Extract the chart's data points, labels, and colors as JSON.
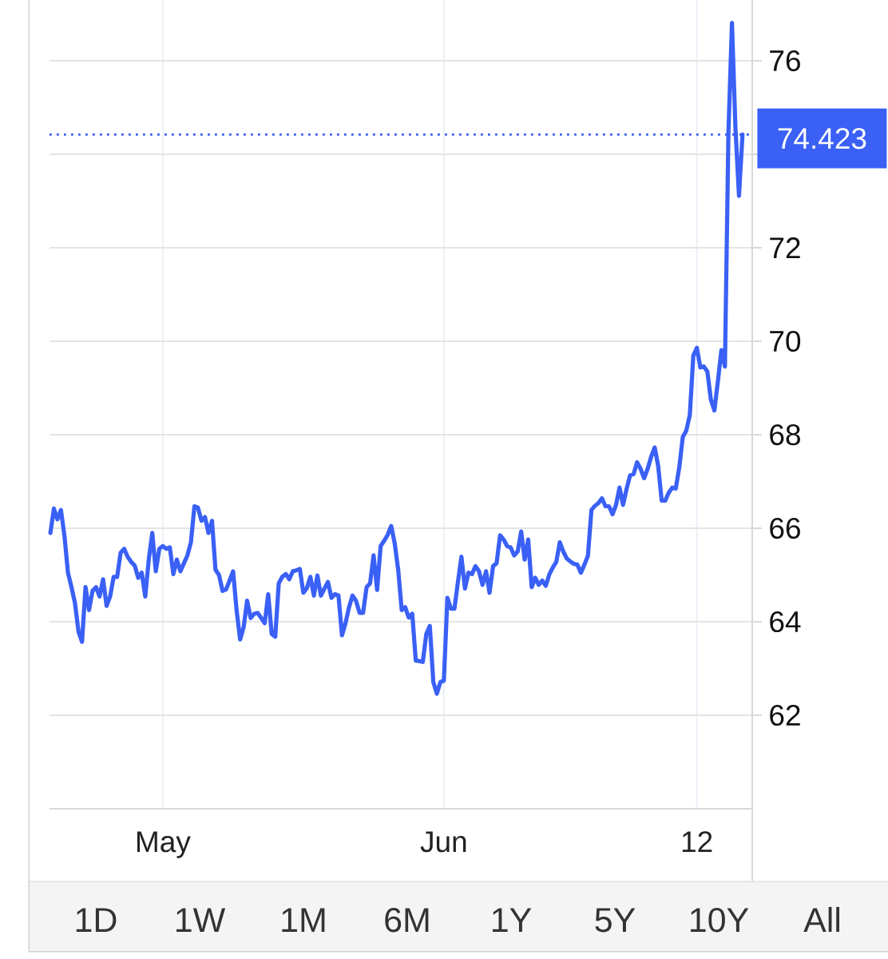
{
  "chart_data": {
    "type": "line",
    "categories": [
      null,
      null,
      null,
      null,
      null,
      null,
      null,
      null,
      null,
      null,
      null,
      null,
      null,
      null,
      null,
      null,
      null,
      null,
      null,
      null,
      null,
      null,
      null,
      null,
      null,
      null,
      null,
      null,
      null,
      null,
      null,
      null,
      "May",
      null,
      null,
      null,
      null,
      null,
      null,
      null,
      null,
      null,
      null,
      null,
      null,
      null,
      null,
      null,
      null,
      null,
      null,
      null,
      null,
      null,
      null,
      null,
      null,
      null,
      null,
      null,
      null,
      null,
      null,
      null,
      null,
      null,
      null,
      null,
      null,
      null,
      null,
      null,
      null,
      null,
      null,
      null,
      null,
      null,
      null,
      null,
      null,
      null,
      null,
      null,
      null,
      null,
      null,
      null,
      null,
      null,
      null,
      null,
      null,
      null,
      null,
      null,
      null,
      null,
      null,
      null,
      null,
      null,
      null,
      null,
      null,
      null,
      null,
      null,
      null,
      null,
      null,
      null,
      "Jun",
      null,
      null,
      null,
      null,
      null,
      null,
      null,
      null,
      null,
      null,
      null,
      null,
      null,
      null,
      null,
      null,
      null,
      null,
      null,
      null,
      null,
      null,
      null,
      null,
      null,
      null,
      null,
      null,
      null,
      null,
      null,
      null,
      null,
      null,
      null,
      null,
      null,
      null,
      null,
      null,
      null,
      null,
      null,
      null,
      null,
      null,
      null,
      null,
      null,
      null,
      null,
      null,
      null,
      null,
      null,
      null,
      null,
      null,
      null,
      null,
      null,
      null,
      null,
      null,
      null,
      null,
      null,
      null,
      null,
      null,
      null,
      "12",
      null,
      null,
      null,
      null,
      null,
      null,
      null,
      null,
      null,
      null,
      null,
      null,
      null
    ],
    "values": [
      65.9,
      66.42,
      66.19,
      66.39,
      65.84,
      65.05,
      64.74,
      64.4,
      63.79,
      63.57,
      64.74,
      64.25,
      64.66,
      64.74,
      64.54,
      64.91,
      64.34,
      64.54,
      64.96,
      64.96,
      65.48,
      65.56,
      65.39,
      65.28,
      65.2,
      64.94,
      65.05,
      64.54,
      65.33,
      65.9,
      65.08,
      65.56,
      65.62,
      65.56,
      65.59,
      65.02,
      65.33,
      65.08,
      65.25,
      65.42,
      65.7,
      66.47,
      66.44,
      66.16,
      66.24,
      65.9,
      66.16,
      65.11,
      65.0,
      64.66,
      64.69,
      64.88,
      65.08,
      64.25,
      63.62,
      63.88,
      64.45,
      64.08,
      64.17,
      64.19,
      64.08,
      63.97,
      64.59,
      63.74,
      63.68,
      64.82,
      64.96,
      65.02,
      64.91,
      65.08,
      65.1,
      65.13,
      64.62,
      64.72,
      64.96,
      64.56,
      64.99,
      64.56,
      64.71,
      64.85,
      64.51,
      64.59,
      64.56,
      63.71,
      63.97,
      64.31,
      64.56,
      64.45,
      64.19,
      64.19,
      64.74,
      64.82,
      65.42,
      64.68,
      65.62,
      65.73,
      65.86,
      66.05,
      65.68,
      65.11,
      64.25,
      64.31,
      64.09,
      64.17,
      63.17,
      63.16,
      63.14,
      63.74,
      63.91,
      62.71,
      62.46,
      62.71,
      62.74,
      64.51,
      64.28,
      64.28,
      64.85,
      65.39,
      64.71,
      65.05,
      65.02,
      65.19,
      65.08,
      64.79,
      65.08,
      64.62,
      65.19,
      65.25,
      65.85,
      65.76,
      65.62,
      65.59,
      65.42,
      65.5,
      65.93,
      65.33,
      65.76,
      64.74,
      64.94,
      64.79,
      64.88,
      64.77,
      65.01,
      65.16,
      65.28,
      65.7,
      65.5,
      65.35,
      65.29,
      65.24,
      65.22,
      65.05,
      65.22,
      65.41,
      66.39,
      66.48,
      66.54,
      66.64,
      66.47,
      66.47,
      66.3,
      66.5,
      66.87,
      66.5,
      66.84,
      67.13,
      67.16,
      67.41,
      67.27,
      67.07,
      67.27,
      67.53,
      67.73,
      67.33,
      66.59,
      66.59,
      66.76,
      66.87,
      66.85,
      67.3,
      67.95,
      68.09,
      68.42,
      69.69,
      69.86,
      69.44,
      69.46,
      69.35,
      68.75,
      68.52,
      69.15,
      69.81,
      69.46,
      74.48,
      76.81,
      74.54,
      73.11,
      74.42
    ],
    "color": "#3a60f5",
    "ylim": [
      60,
      77.3
    ],
    "yticks": [
      62,
      64,
      66,
      68,
      70,
      72,
      {
        "value": 74,
        "label": null
      },
      76
    ],
    "grid": true,
    "ref_lines": [
      {
        "axis": "y",
        "value": 74.423,
        "label": "74.423",
        "color": "#3a60f5",
        "line_style": "dotted"
      }
    ],
    "annotations": [
      "1D",
      "1W",
      "1M",
      "6M",
      "1Y",
      "5Y",
      "10Y",
      "All"
    ]
  }
}
